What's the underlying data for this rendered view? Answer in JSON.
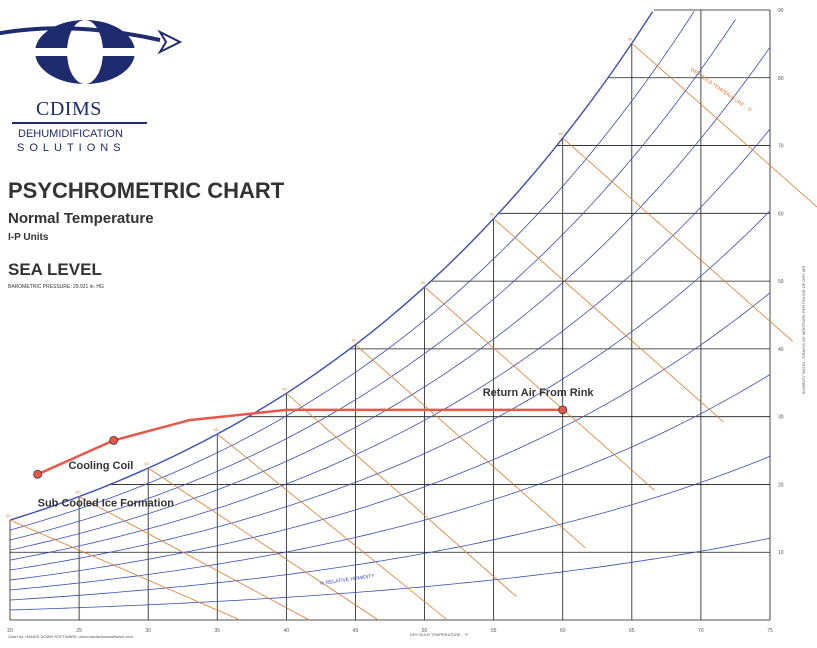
{
  "brand": {
    "name": "CDIMS",
    "line1": "DEHUMIDIFICATION",
    "line2": "SOLUTIONS"
  },
  "header": {
    "title": "PSYCHROMETRIC CHART",
    "subtitle": "Normal Temperature",
    "units": "I-P Units",
    "elevation": "SEA LEVEL",
    "pressure": "BAROMETRIC PRESSURE: 29.921 in. HG"
  },
  "footer": {
    "credit": "Chart by: HANDS DOWN SOFTWARE, www.handsdownsoftware.com",
    "x_axis_title": "DRY BULB TEMPERATURE - °F"
  },
  "colors": {
    "grid": "#1a1a1a",
    "rh_curves": "#3b4fb3",
    "wet_bulb": "#e07a2e",
    "process": "#e8584a",
    "brand": "#1e2b6f"
  },
  "chart_data": {
    "type": "line",
    "x_axis": {
      "label": "DRY BULB TEMPERATURE - °F",
      "range": [
        20,
        100
      ],
      "ticks": [
        20,
        25,
        30,
        35,
        40,
        45,
        50,
        55,
        60,
        65,
        70,
        75
      ]
    },
    "y_axis": {
      "label": "HUMIDITY RATIO - GRAINS OF MOISTURE PER POUND OF DRY AIR",
      "range": [
        0,
        90
      ],
      "ticks": [
        10,
        20,
        30,
        40,
        50,
        60,
        70,
        80,
        90
      ],
      "position": "right"
    },
    "rh_label": "% RELATIVE HUMIDITY",
    "wet_bulb_label": "WET BULB TEMPERATURE - °F",
    "wet_bulb_ticks": [
      "20",
      "25",
      "30",
      "35",
      "40",
      "45",
      "50",
      "55",
      "60",
      "65"
    ],
    "process": {
      "points": [
        {
          "x": 22,
          "y": 21.5
        },
        {
          "x": 27.5,
          "y": 26.5
        },
        {
          "x": 33,
          "y": 29.5
        },
        {
          "x": 40,
          "y": 31
        },
        {
          "x": 50,
          "y": 31
        },
        {
          "x": 60,
          "y": 31
        }
      ],
      "markers": [
        {
          "x": 22,
          "y": 21.5
        },
        {
          "x": 27.5,
          "y": 26.5
        },
        {
          "x": 60,
          "y": 31
        }
      ]
    },
    "annotations": [
      {
        "text": "Return Air From Rink",
        "x": 60,
        "y": 31
      },
      {
        "text": "Cooling Coil",
        "x": 28,
        "y": 26
      },
      {
        "text": "Sub Cooled Ice Formation",
        "x": 22,
        "y": 21.5
      }
    ]
  }
}
